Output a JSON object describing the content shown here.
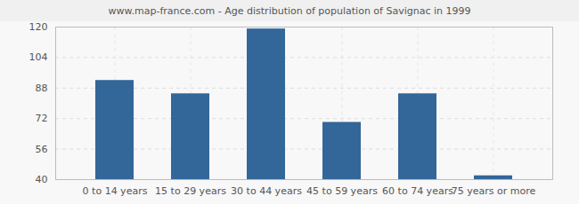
{
  "chart_data": {
    "type": "bar",
    "title": "www.map-france.com - Age distribution of population of Savignac in 1999",
    "categories": [
      "0 to 14 years",
      "15 to 29 years",
      "30 to 44 years",
      "45 to 59 years",
      "60 to 74 years",
      "75 years or more"
    ],
    "values": [
      92,
      85,
      119,
      70,
      85,
      42
    ],
    "color": "#336699",
    "ylim": [
      40,
      120
    ],
    "yticks": [
      40,
      56,
      72,
      88,
      104,
      120
    ],
    "grid": true
  }
}
